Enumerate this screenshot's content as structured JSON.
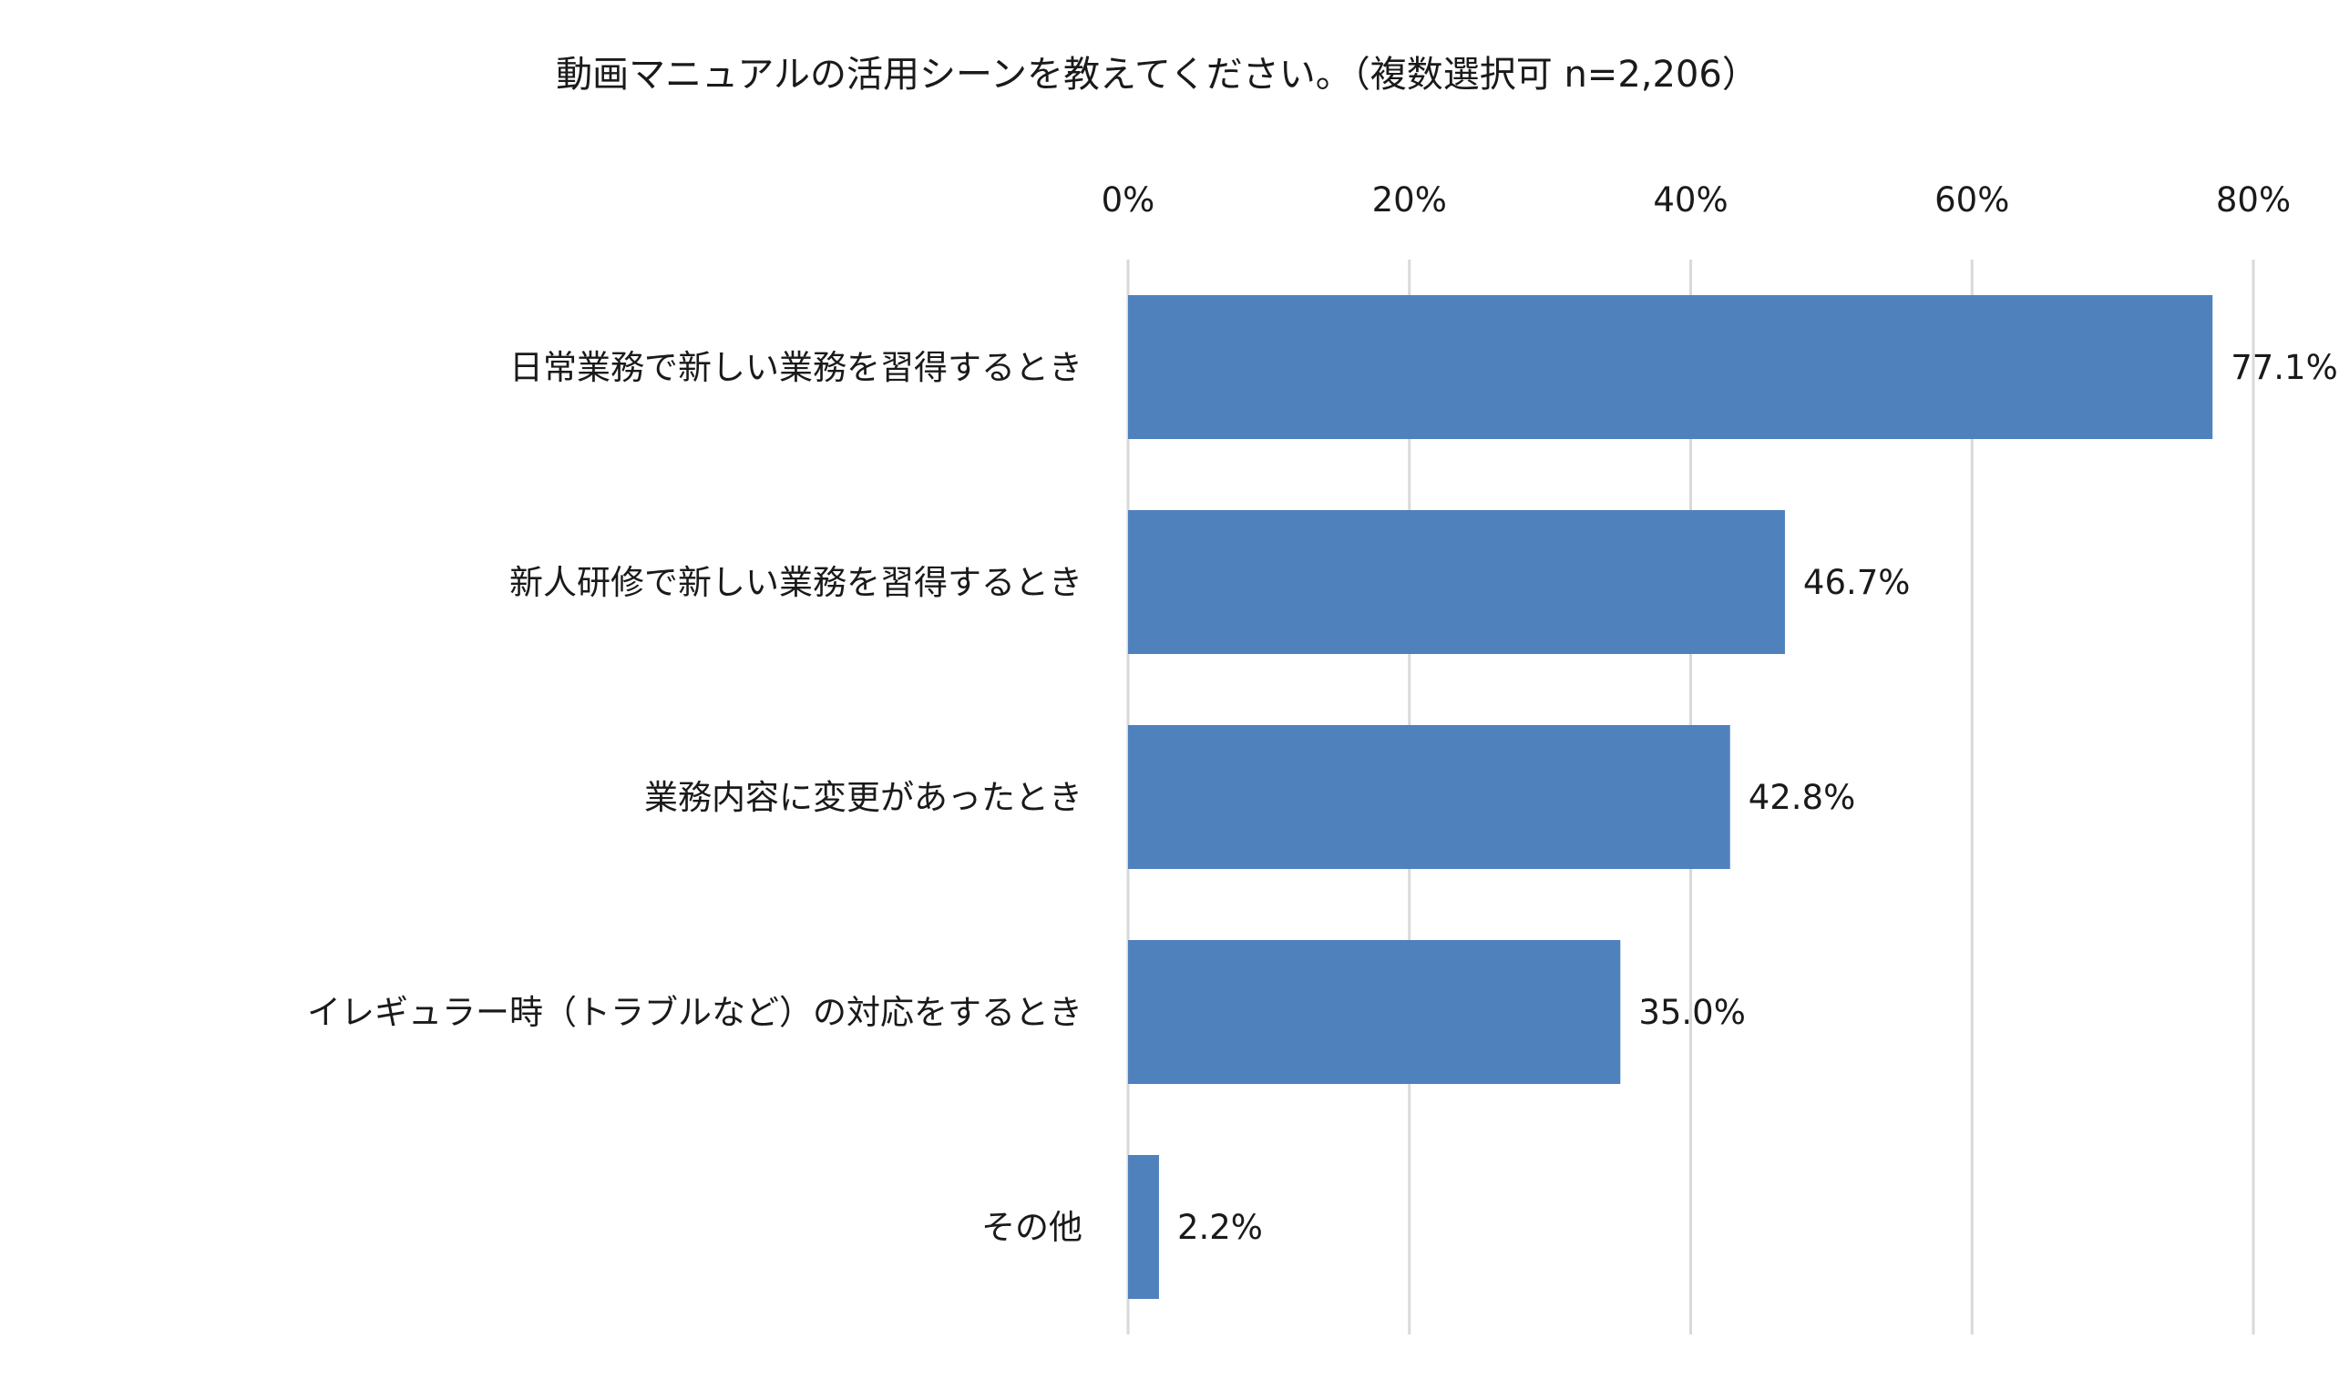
{
  "chart_data": {
    "type": "bar",
    "orientation": "horizontal",
    "title": "動画マニュアルの活用シーンを教えてください。（複数選択可 n=2,206）",
    "categories": [
      "日常業務で新しい業務を習得するとき",
      "新人研修で新しい業務を習得するとき",
      "業務内容に変更があったとき",
      "イレギュラー時（トラブルなど）の対応をするとき",
      "その他"
    ],
    "values": [
      77.1,
      46.7,
      42.8,
      35.0,
      2.2
    ],
    "value_labels": [
      "77.1%",
      "46.7%",
      "42.8%",
      "35.0%",
      "2.2%"
    ],
    "xlim": [
      0,
      80
    ],
    "x_ticks": [
      0,
      20,
      40,
      60,
      80
    ],
    "x_tick_labels": [
      "0%",
      "20%",
      "40%",
      "60%",
      "80%"
    ],
    "x_axis_position": "top",
    "grid": true,
    "bar_color": "#4f81bd"
  }
}
